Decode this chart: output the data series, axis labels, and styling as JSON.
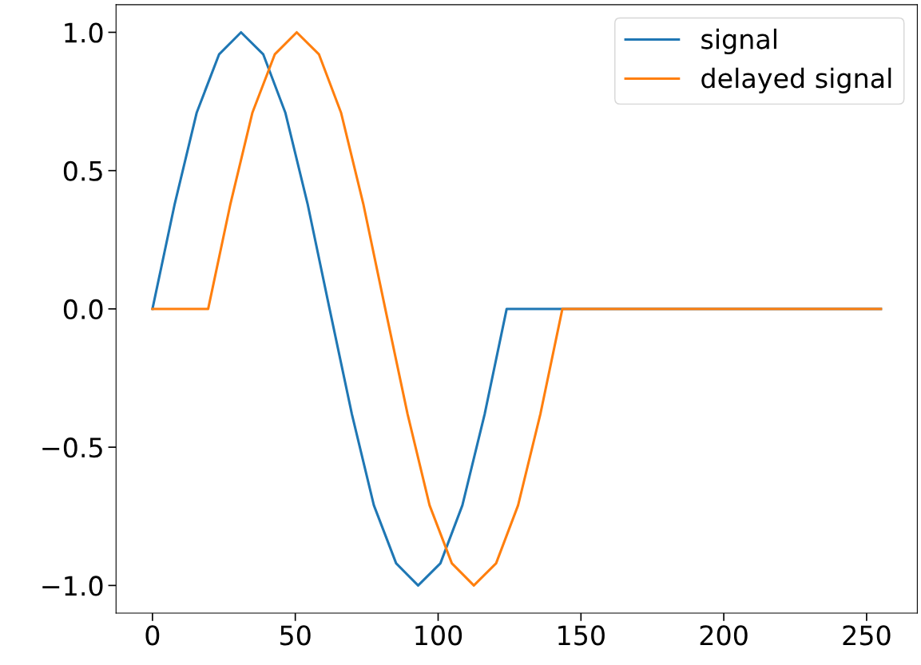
{
  "chart_data": {
    "type": "line",
    "series": [
      {
        "name": "signal",
        "color": "#1f77b4",
        "x": [
          0,
          7.8,
          15.5,
          23.3,
          31,
          38.8,
          46.5,
          54.3,
          62,
          69.8,
          77.5,
          85.3,
          93,
          100.8,
          108.5,
          116.3,
          124,
          255
        ],
        "values": [
          0,
          0.38,
          0.71,
          0.92,
          1.0,
          0.92,
          0.71,
          0.38,
          0,
          -0.38,
          -0.71,
          -0.92,
          -1.0,
          -0.92,
          -0.71,
          -0.38,
          0,
          0
        ]
      },
      {
        "name": "delayed signal",
        "color": "#ff7f0e",
        "x": [
          0,
          19.5,
          27.3,
          35,
          42.8,
          50.5,
          58.3,
          66,
          73.8,
          81.5,
          89.3,
          97,
          104.8,
          112.5,
          120.3,
          128,
          135.8,
          143.5,
          255
        ],
        "values": [
          0,
          0,
          0.38,
          0.71,
          0.92,
          1.0,
          0.92,
          0.71,
          0.38,
          0,
          -0.38,
          -0.71,
          -0.92,
          -1.0,
          -0.92,
          -0.71,
          -0.38,
          0,
          0
        ]
      }
    ],
    "xlim": [
      -12.75,
      267.75
    ],
    "ylim": [
      -1.1,
      1.1
    ],
    "xticks": [
      0,
      50,
      100,
      150,
      200,
      250
    ],
    "yticks": [
      {
        "value": -1.0,
        "label": "−1.0"
      },
      {
        "value": -0.5,
        "label": "−0.5"
      },
      {
        "value": 0.0,
        "label": "0.0"
      },
      {
        "value": 0.5,
        "label": "0.5"
      },
      {
        "value": 1.0,
        "label": "1.0"
      }
    ],
    "legend": "top right",
    "grid": false,
    "line_style": "solid",
    "marker": "none"
  }
}
